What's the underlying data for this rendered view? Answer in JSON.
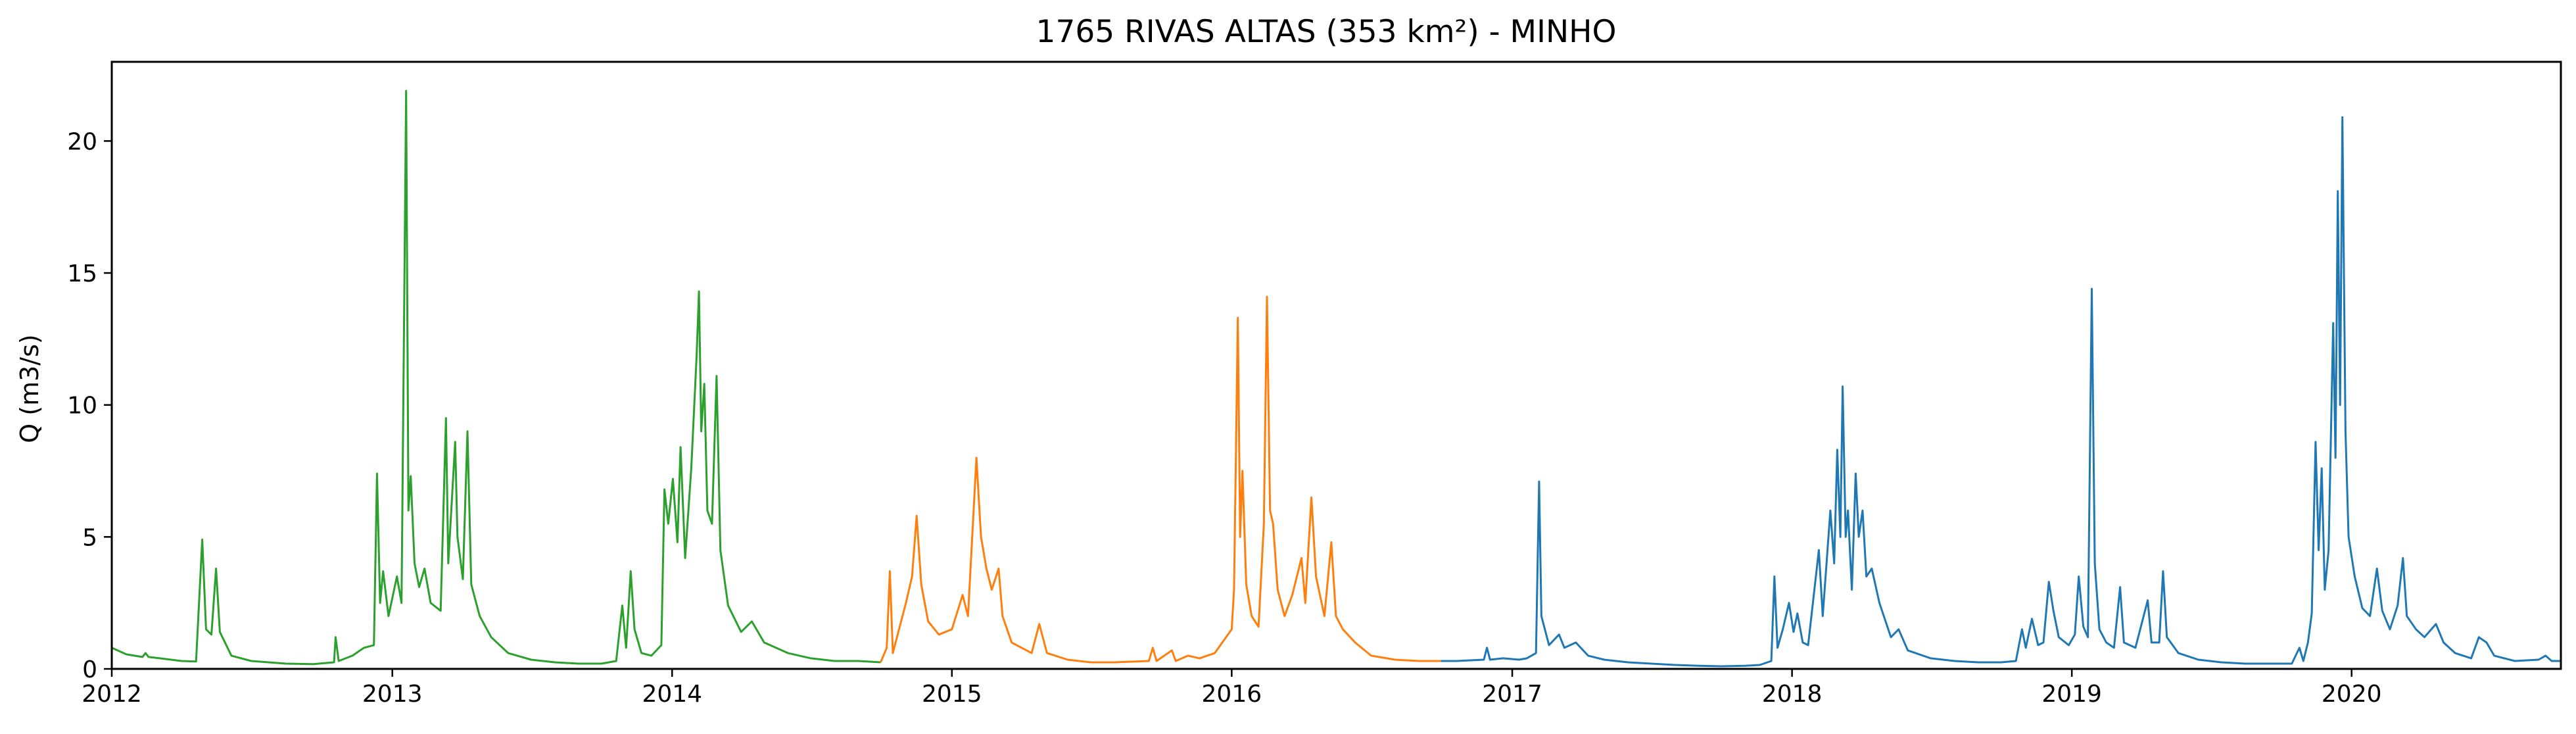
{
  "chart_data": {
    "type": "line",
    "title": "1765 RIVAS ALTAS (353 km²) - MINHO",
    "xlabel": "",
    "ylabel": "Q (m3/s)",
    "xlim": [
      "2012-01-01",
      "2020-09-30"
    ],
    "ylim": [
      0,
      23
    ],
    "x_ticks": [
      "2012",
      "2013",
      "2014",
      "2015",
      "2016",
      "2017",
      "2018",
      "2019",
      "2020"
    ],
    "y_ticks": [
      0,
      5,
      10,
      15,
      20
    ],
    "grid": false,
    "legend": "none",
    "series": [
      {
        "color": "#2ca02c",
        "points": [
          [
            "2012-01-01",
            0.8
          ],
          [
            "2012-01-20",
            0.55
          ],
          [
            "2012-02-10",
            0.45
          ],
          [
            "2012-02-14",
            0.6
          ],
          [
            "2012-02-18",
            0.45
          ],
          [
            "2012-03-10",
            0.38
          ],
          [
            "2012-04-01",
            0.3
          ],
          [
            "2012-04-20",
            0.28
          ],
          [
            "2012-04-28",
            4.9
          ],
          [
            "2012-05-03",
            1.5
          ],
          [
            "2012-05-10",
            1.3
          ],
          [
            "2012-05-16",
            3.8
          ],
          [
            "2012-05-21",
            1.4
          ],
          [
            "2012-06-05",
            0.5
          ],
          [
            "2012-07-01",
            0.3
          ],
          [
            "2012-08-15",
            0.2
          ],
          [
            "2012-09-20",
            0.18
          ],
          [
            "2012-10-17",
            0.25
          ],
          [
            "2012-10-19",
            1.2
          ],
          [
            "2012-10-23",
            0.3
          ],
          [
            "2012-11-10",
            0.5
          ],
          [
            "2012-11-25",
            0.8
          ],
          [
            "2012-12-08",
            0.9
          ],
          [
            "2012-12-12",
            7.4
          ],
          [
            "2012-12-16",
            2.5
          ],
          [
            "2012-12-20",
            3.7
          ],
          [
            "2012-12-27",
            2.0
          ],
          [
            "2013-01-07",
            3.5
          ],
          [
            "2013-01-13",
            2.5
          ],
          [
            "2013-01-19",
            21.9
          ],
          [
            "2013-01-22",
            6.0
          ],
          [
            "2013-01-25",
            7.3
          ],
          [
            "2013-01-30",
            4.0
          ],
          [
            "2013-02-05",
            3.1
          ],
          [
            "2013-02-12",
            3.8
          ],
          [
            "2013-02-20",
            2.5
          ],
          [
            "2013-03-05",
            2.2
          ],
          [
            "2013-03-12",
            9.5
          ],
          [
            "2013-03-15",
            4.0
          ],
          [
            "2013-03-24",
            8.6
          ],
          [
            "2013-03-27",
            5.0
          ],
          [
            "2013-04-03",
            3.4
          ],
          [
            "2013-04-09",
            9.0
          ],
          [
            "2013-04-14",
            3.2
          ],
          [
            "2013-04-25",
            2.0
          ],
          [
            "2013-05-10",
            1.2
          ],
          [
            "2013-06-01",
            0.6
          ],
          [
            "2013-07-01",
            0.35
          ],
          [
            "2013-08-01",
            0.25
          ],
          [
            "2013-09-01",
            0.2
          ],
          [
            "2013-10-01",
            0.2
          ],
          [
            "2013-10-20",
            0.3
          ],
          [
            "2013-10-28",
            2.4
          ],
          [
            "2013-11-02",
            0.8
          ],
          [
            "2013-11-08",
            3.7
          ],
          [
            "2013-11-13",
            1.5
          ],
          [
            "2013-11-22",
            0.6
          ],
          [
            "2013-12-05",
            0.5
          ],
          [
            "2013-12-18",
            0.9
          ],
          [
            "2013-12-22",
            6.8
          ],
          [
            "2013-12-27",
            5.5
          ],
          [
            "2014-01-02",
            7.2
          ],
          [
            "2014-01-08",
            4.8
          ],
          [
            "2014-01-12",
            8.4
          ],
          [
            "2014-01-18",
            4.2
          ],
          [
            "2014-01-26",
            7.6
          ],
          [
            "2014-02-02",
            11.9
          ],
          [
            "2014-02-05",
            14.3
          ],
          [
            "2014-02-08",
            9.0
          ],
          [
            "2014-02-12",
            10.8
          ],
          [
            "2014-02-16",
            6.0
          ],
          [
            "2014-02-22",
            5.5
          ],
          [
            "2014-02-28",
            11.1
          ],
          [
            "2014-03-05",
            4.5
          ],
          [
            "2014-03-15",
            2.4
          ],
          [
            "2014-04-01",
            1.4
          ],
          [
            "2014-04-15",
            1.8
          ],
          [
            "2014-05-01",
            1.0
          ],
          [
            "2014-06-01",
            0.6
          ],
          [
            "2014-07-01",
            0.4
          ],
          [
            "2014-08-01",
            0.3
          ],
          [
            "2014-09-01",
            0.3
          ],
          [
            "2014-09-30",
            0.25
          ]
        ]
      },
      {
        "color": "#ff7f0e",
        "points": [
          [
            "2014-09-30",
            0.25
          ],
          [
            "2014-10-08",
            0.8
          ],
          [
            "2014-10-12",
            3.7
          ],
          [
            "2014-10-16",
            0.6
          ],
          [
            "2014-10-24",
            1.5
          ],
          [
            "2014-11-02",
            2.5
          ],
          [
            "2014-11-10",
            3.5
          ],
          [
            "2014-11-16",
            5.8
          ],
          [
            "2014-11-22",
            3.2
          ],
          [
            "2014-12-01",
            1.8
          ],
          [
            "2014-12-15",
            1.3
          ],
          [
            "2015-01-01",
            1.5
          ],
          [
            "2015-01-15",
            2.8
          ],
          [
            "2015-01-22",
            2.0
          ],
          [
            "2015-02-02",
            8.0
          ],
          [
            "2015-02-08",
            5.0
          ],
          [
            "2015-02-15",
            3.8
          ],
          [
            "2015-02-22",
            3.0
          ],
          [
            "2015-03-03",
            3.8
          ],
          [
            "2015-03-08",
            2.0
          ],
          [
            "2015-03-20",
            1.0
          ],
          [
            "2015-04-15",
            0.6
          ],
          [
            "2015-04-25",
            1.7
          ],
          [
            "2015-05-05",
            0.6
          ],
          [
            "2015-06-01",
            0.35
          ],
          [
            "2015-07-01",
            0.25
          ],
          [
            "2015-08-01",
            0.25
          ],
          [
            "2015-09-15",
            0.3
          ],
          [
            "2015-09-20",
            0.8
          ],
          [
            "2015-09-25",
            0.3
          ],
          [
            "2015-10-15",
            0.7
          ],
          [
            "2015-10-20",
            0.3
          ],
          [
            "2015-11-05",
            0.5
          ],
          [
            "2015-11-20",
            0.4
          ],
          [
            "2015-12-10",
            0.6
          ],
          [
            "2016-01-01",
            1.5
          ],
          [
            "2016-01-04",
            3.0
          ],
          [
            "2016-01-09",
            13.3
          ],
          [
            "2016-01-12",
            5.0
          ],
          [
            "2016-01-15",
            7.5
          ],
          [
            "2016-01-20",
            3.2
          ],
          [
            "2016-01-27",
            2.0
          ],
          [
            "2016-02-05",
            1.6
          ],
          [
            "2016-02-12",
            5.5
          ],
          [
            "2016-02-16",
            14.1
          ],
          [
            "2016-02-20",
            6.0
          ],
          [
            "2016-02-24",
            5.5
          ],
          [
            "2016-03-01",
            3.0
          ],
          [
            "2016-03-10",
            2.0
          ],
          [
            "2016-03-20",
            2.8
          ],
          [
            "2016-04-01",
            4.2
          ],
          [
            "2016-04-06",
            2.5
          ],
          [
            "2016-04-14",
            6.5
          ],
          [
            "2016-04-20",
            3.5
          ],
          [
            "2016-05-01",
            2.0
          ],
          [
            "2016-05-10",
            4.8
          ],
          [
            "2016-05-16",
            2.0
          ],
          [
            "2016-05-25",
            1.5
          ],
          [
            "2016-06-10",
            1.0
          ],
          [
            "2016-07-01",
            0.5
          ],
          [
            "2016-08-01",
            0.35
          ],
          [
            "2016-09-01",
            0.3
          ],
          [
            "2016-09-30",
            0.3
          ]
        ]
      },
      {
        "color": "#1f77b4",
        "points": [
          [
            "2016-09-30",
            0.3
          ],
          [
            "2016-10-20",
            0.3
          ],
          [
            "2016-11-25",
            0.35
          ],
          [
            "2016-11-29",
            0.8
          ],
          [
            "2016-12-03",
            0.35
          ],
          [
            "2016-12-20",
            0.4
          ],
          [
            "2017-01-10",
            0.35
          ],
          [
            "2017-01-20",
            0.4
          ],
          [
            "2017-02-01",
            0.6
          ],
          [
            "2017-02-05",
            7.1
          ],
          [
            "2017-02-08",
            2.0
          ],
          [
            "2017-02-18",
            0.9
          ],
          [
            "2017-03-03",
            1.3
          ],
          [
            "2017-03-10",
            0.8
          ],
          [
            "2017-03-25",
            1.0
          ],
          [
            "2017-04-10",
            0.5
          ],
          [
            "2017-05-01",
            0.35
          ],
          [
            "2017-06-01",
            0.25
          ],
          [
            "2017-07-01",
            0.2
          ],
          [
            "2017-08-01",
            0.15
          ],
          [
            "2017-09-01",
            0.12
          ],
          [
            "2017-10-01",
            0.1
          ],
          [
            "2017-11-01",
            0.12
          ],
          [
            "2017-11-20",
            0.15
          ],
          [
            "2017-12-05",
            0.3
          ],
          [
            "2017-12-09",
            3.5
          ],
          [
            "2017-12-13",
            0.8
          ],
          [
            "2017-12-20",
            1.5
          ],
          [
            "2017-12-28",
            2.5
          ],
          [
            "2018-01-03",
            1.4
          ],
          [
            "2018-01-08",
            2.1
          ],
          [
            "2018-01-15",
            1.0
          ],
          [
            "2018-01-22",
            0.9
          ],
          [
            "2018-02-05",
            4.5
          ],
          [
            "2018-02-10",
            2.0
          ],
          [
            "2018-02-20",
            6.0
          ],
          [
            "2018-02-25",
            4.0
          ],
          [
            "2018-03-01",
            8.3
          ],
          [
            "2018-03-05",
            5.0
          ],
          [
            "2018-03-08",
            10.7
          ],
          [
            "2018-03-12",
            5.0
          ],
          [
            "2018-03-15",
            6.0
          ],
          [
            "2018-03-20",
            3.0
          ],
          [
            "2018-03-25",
            7.4
          ],
          [
            "2018-03-29",
            5.0
          ],
          [
            "2018-04-03",
            6.0
          ],
          [
            "2018-04-08",
            3.5
          ],
          [
            "2018-04-15",
            3.8
          ],
          [
            "2018-04-25",
            2.5
          ],
          [
            "2018-05-10",
            1.2
          ],
          [
            "2018-05-20",
            1.5
          ],
          [
            "2018-06-01",
            0.7
          ],
          [
            "2018-07-01",
            0.4
          ],
          [
            "2018-08-01",
            0.3
          ],
          [
            "2018-09-01",
            0.25
          ],
          [
            "2018-10-01",
            0.25
          ],
          [
            "2018-10-20",
            0.3
          ],
          [
            "2018-10-28",
            1.5
          ],
          [
            "2018-11-02",
            0.8
          ],
          [
            "2018-11-10",
            1.9
          ],
          [
            "2018-11-18",
            0.9
          ],
          [
            "2018-11-25",
            1.0
          ],
          [
            "2018-12-02",
            3.3
          ],
          [
            "2018-12-08",
            2.2
          ],
          [
            "2018-12-15",
            1.2
          ],
          [
            "2018-12-28",
            0.9
          ],
          [
            "2019-01-05",
            1.3
          ],
          [
            "2019-01-10",
            3.5
          ],
          [
            "2019-01-16",
            1.6
          ],
          [
            "2019-01-22",
            1.2
          ],
          [
            "2019-01-27",
            14.4
          ],
          [
            "2019-01-31",
            4.0
          ],
          [
            "2019-02-06",
            1.5
          ],
          [
            "2019-02-15",
            1.0
          ],
          [
            "2019-02-25",
            0.8
          ],
          [
            "2019-03-05",
            3.1
          ],
          [
            "2019-03-10",
            1.0
          ],
          [
            "2019-03-25",
            0.8
          ],
          [
            "2019-04-10",
            2.6
          ],
          [
            "2019-04-15",
            1.0
          ],
          [
            "2019-04-25",
            1.0
          ],
          [
            "2019-04-30",
            3.7
          ],
          [
            "2019-05-05",
            1.2
          ],
          [
            "2019-05-20",
            0.6
          ],
          [
            "2019-06-15",
            0.35
          ],
          [
            "2019-07-15",
            0.25
          ],
          [
            "2019-08-15",
            0.2
          ],
          [
            "2019-09-15",
            0.2
          ],
          [
            "2019-10-15",
            0.2
          ],
          [
            "2019-10-25",
            0.8
          ],
          [
            "2019-10-30",
            0.3
          ],
          [
            "2019-11-05",
            1.0
          ],
          [
            "2019-11-10",
            2.1
          ],
          [
            "2019-11-15",
            8.6
          ],
          [
            "2019-11-19",
            4.5
          ],
          [
            "2019-11-23",
            7.6
          ],
          [
            "2019-11-27",
            3.0
          ],
          [
            "2019-12-02",
            4.5
          ],
          [
            "2019-12-08",
            13.1
          ],
          [
            "2019-12-11",
            8.0
          ],
          [
            "2019-12-14",
            18.1
          ],
          [
            "2019-12-17",
            10.0
          ],
          [
            "2019-12-20",
            20.9
          ],
          [
            "2019-12-24",
            9.0
          ],
          [
            "2019-12-28",
            5.0
          ],
          [
            "2020-01-05",
            3.5
          ],
          [
            "2020-01-15",
            2.3
          ],
          [
            "2020-01-25",
            2.0
          ],
          [
            "2020-02-03",
            3.8
          ],
          [
            "2020-02-10",
            2.2
          ],
          [
            "2020-02-20",
            1.5
          ],
          [
            "2020-03-01",
            2.4
          ],
          [
            "2020-03-08",
            4.2
          ],
          [
            "2020-03-13",
            2.0
          ],
          [
            "2020-03-25",
            1.5
          ],
          [
            "2020-04-05",
            1.2
          ],
          [
            "2020-04-20",
            1.7
          ],
          [
            "2020-04-30",
            1.0
          ],
          [
            "2020-05-15",
            0.6
          ],
          [
            "2020-06-05",
            0.4
          ],
          [
            "2020-06-15",
            1.2
          ],
          [
            "2020-06-25",
            1.0
          ],
          [
            "2020-07-05",
            0.5
          ],
          [
            "2020-08-01",
            0.3
          ],
          [
            "2020-09-01",
            0.35
          ],
          [
            "2020-09-10",
            0.5
          ],
          [
            "2020-09-18",
            0.3
          ],
          [
            "2020-09-30",
            0.3
          ]
        ]
      }
    ]
  }
}
